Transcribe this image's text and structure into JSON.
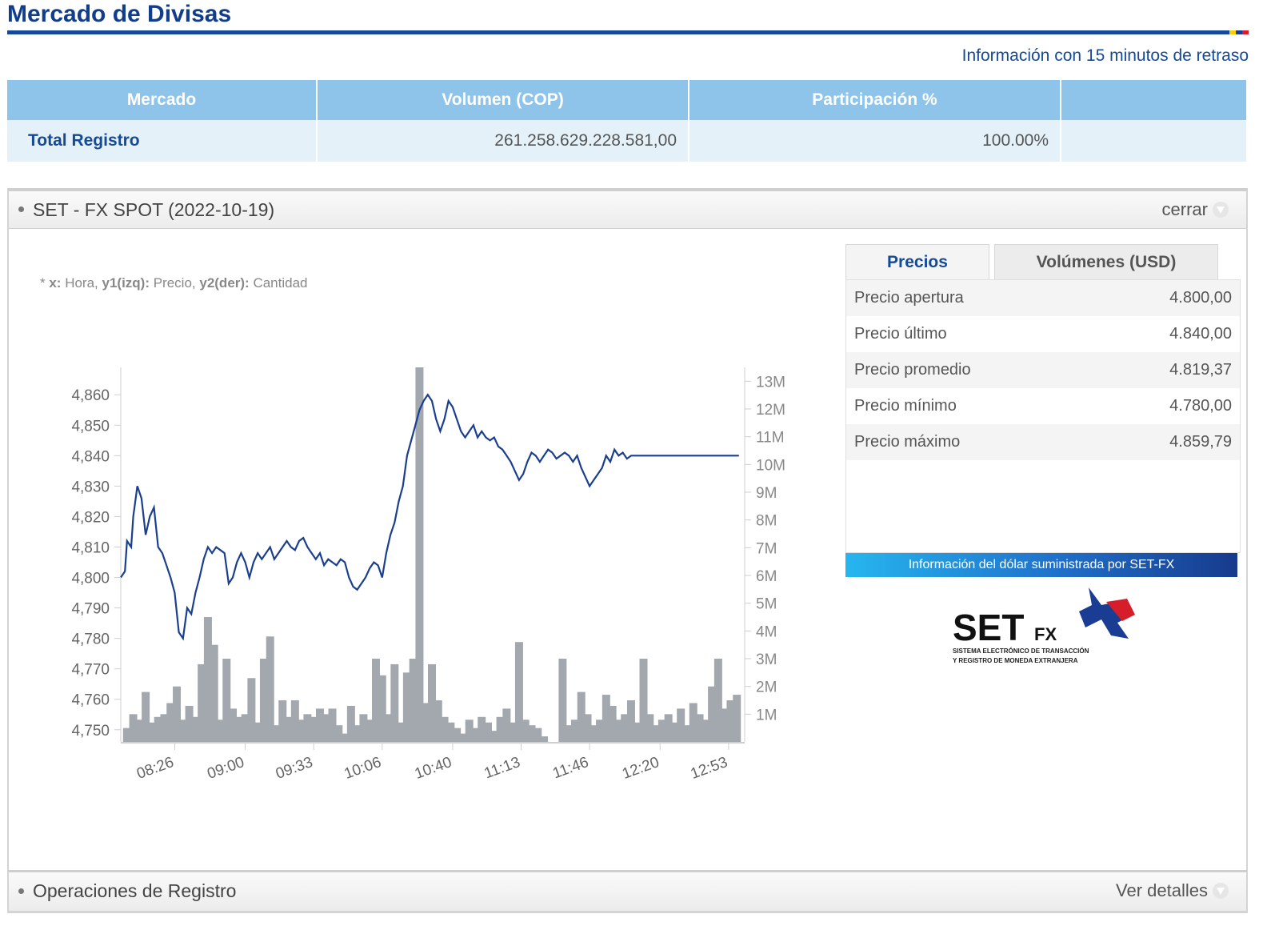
{
  "header": {
    "title": "Mercado de Divisas",
    "delay_note": "Información con 15 minutos de retraso"
  },
  "market_table": {
    "headers": [
      "Mercado",
      "Volumen (COP)",
      "Participación %",
      ""
    ],
    "row": {
      "mercado": "Total Registro",
      "volumen": "261.258.629.228.581,00",
      "participacion": "100.00%"
    }
  },
  "panel": {
    "title": "SET - FX SPOT (2022-10-19)",
    "close_label": "cerrar",
    "legend": {
      "x_key": "x:",
      "x_val": " Hora, ",
      "y1_key": "y1(izq):",
      "y1_val": " Precio, ",
      "y2_key": "y2(der):",
      "y2_val": " Cantidad"
    },
    "tabs": {
      "prices": "Precios",
      "volumes": "Volúmenes (USD)"
    },
    "prices": [
      {
        "label": "Precio apertura",
        "value": "4.800,00"
      },
      {
        "label": "Precio último",
        "value": "4.840,00"
      },
      {
        "label": "Precio promedio",
        "value": "4.819,37"
      },
      {
        "label": "Precio mínimo",
        "value": "4.780,00"
      },
      {
        "label": "Precio máximo",
        "value": "4.859,79"
      }
    ],
    "banner": "Información del dólar suministrada por SET-FX",
    "logo": {
      "main": "SET",
      "sub": "FX",
      "tag1": "SISTEMA ELECTRÓNICO DE TRANSACCIÓN",
      "tag2": "Y REGISTRO DE MONEDA EXTRANJERA"
    }
  },
  "panel2": {
    "title": "Operaciones de Registro",
    "details_label": "Ver detalles"
  },
  "colors": {
    "brand": "#103d8c",
    "price_line": "#1a3f8f",
    "volume_bar": "#a2a8ad",
    "table_header": "#8fc4ea"
  },
  "chart_data": {
    "type": "line+bar",
    "x_tick_labels": [
      "08:26",
      "09:00",
      "09:33",
      "10:06",
      "10:40",
      "11:13",
      "11:46",
      "12:20",
      "12:53"
    ],
    "y1_tick_labels": [
      "4,750",
      "4,760",
      "4,770",
      "4,780",
      "4,790",
      "4,800",
      "4,810",
      "4,820",
      "4,830",
      "4,840",
      "4,850",
      "4,860"
    ],
    "y2_tick_labels": [
      "1M",
      "2M",
      "3M",
      "4M",
      "5M",
      "6M",
      "7M",
      "8M",
      "9M",
      "10M",
      "11M",
      "12M",
      "13M"
    ],
    "y1_range": [
      4746,
      4869
    ],
    "y2_range": [
      0,
      13500000
    ],
    "x_range_minutes": [
      480,
      780
    ],
    "price_series": {
      "x_minutes": [
        480,
        482,
        483,
        485,
        486,
        488,
        490,
        492,
        494,
        496,
        498,
        500,
        502,
        504,
        506,
        508,
        510,
        512,
        514,
        516,
        518,
        520,
        522,
        524,
        526,
        528,
        530,
        532,
        534,
        536,
        538,
        540,
        542,
        544,
        546,
        548,
        550,
        552,
        554,
        556,
        558,
        560,
        562,
        564,
        566,
        568,
        570,
        572,
        574,
        576,
        578,
        580,
        582,
        584,
        586,
        588,
        590,
        592,
        594,
        596,
        598,
        600,
        602,
        604,
        606,
        608,
        610,
        612,
        614,
        616,
        618,
        620,
        622,
        624,
        626,
        628,
        630,
        632,
        634,
        636,
        638,
        640,
        642,
        644,
        646,
        648,
        650,
        652,
        654,
        656,
        658,
        660,
        662,
        664,
        666,
        668,
        670,
        672,
        674,
        676,
        678,
        680,
        682,
        684,
        686,
        688,
        690,
        692,
        694,
        696,
        698,
        700,
        702,
        704,
        706,
        708,
        710,
        712,
        714,
        716,
        718,
        720,
        722,
        724,
        726,
        728,
        730,
        732,
        734,
        736,
        738,
        740,
        742,
        744,
        746,
        748,
        750,
        752,
        754,
        756,
        758,
        760,
        762,
        764,
        766,
        768,
        770,
        772,
        774,
        776,
        778
      ],
      "values": [
        4800,
        4802,
        4812,
        4810,
        4820,
        4830,
        4826,
        4814,
        4820,
        4823,
        4810,
        4808,
        4804,
        4800,
        4795,
        4782,
        4780,
        4790,
        4788,
        4795,
        4800,
        4806,
        4810,
        4808,
        4810,
        4809,
        4808,
        4798,
        4800,
        4805,
        4808,
        4805,
        4800,
        4805,
        4808,
        4806,
        4808,
        4810,
        4806,
        4808,
        4810,
        4812,
        4810,
        4809,
        4812,
        4813,
        4810,
        4808,
        4806,
        4808,
        4804,
        4806,
        4805,
        4804,
        4806,
        4805,
        4800,
        4797,
        4796,
        4798,
        4800,
        4803,
        4805,
        4804,
        4800,
        4808,
        4814,
        4818,
        4825,
        4830,
        4840,
        4845,
        4850,
        4855,
        4858,
        4860,
        4858,
        4852,
        4848,
        4852,
        4858,
        4856,
        4852,
        4848,
        4846,
        4848,
        4850,
        4846,
        4848,
        4846,
        4845,
        4846,
        4843,
        4842,
        4840,
        4838,
        4835,
        4832,
        4834,
        4838,
        4841,
        4840,
        4838,
        4840,
        4842,
        4841,
        4839,
        4840,
        4841,
        4840,
        4838,
        4840,
        4836,
        4833,
        4830,
        4832,
        4834,
        4836,
        4840,
        4838,
        4842,
        4840,
        4841,
        4839,
        4840,
        4840,
        4840,
        4840,
        4840,
        4840,
        4840,
        4840,
        4840,
        4840,
        4840,
        4840,
        4840,
        4840,
        4840,
        4840,
        4840,
        4840,
        4840,
        4840,
        4840,
        4840,
        4840,
        4840,
        4840,
        4840,
        4840
      ]
    },
    "volume_series": {
      "x_minutes": [
        483,
        486,
        489,
        492,
        495,
        498,
        501,
        504,
        507,
        510,
        513,
        516,
        519,
        522,
        525,
        528,
        531,
        534,
        537,
        540,
        543,
        546,
        549,
        552,
        555,
        558,
        561,
        564,
        567,
        570,
        573,
        576,
        579,
        582,
        585,
        588,
        591,
        594,
        597,
        600,
        603,
        606,
        609,
        612,
        615,
        618,
        621,
        624,
        627,
        630,
        633,
        636,
        639,
        642,
        645,
        648,
        651,
        654,
        657,
        660,
        663,
        666,
        669,
        672,
        675,
        678,
        681,
        684,
        687,
        690,
        693,
        696,
        699,
        702,
        705,
        708,
        711,
        714,
        717,
        720,
        723,
        726,
        729,
        732,
        735,
        738,
        741,
        744,
        747,
        750,
        753,
        756,
        759,
        762,
        765,
        768,
        771,
        774,
        777
      ],
      "values": [
        500000,
        1000000,
        800000,
        1800000,
        700000,
        900000,
        1000000,
        1400000,
        2000000,
        800000,
        1300000,
        900000,
        2800000,
        4500000,
        3500000,
        800000,
        3000000,
        1200000,
        900000,
        1000000,
        2300000,
        700000,
        3000000,
        3800000,
        600000,
        1500000,
        900000,
        1500000,
        800000,
        1000000,
        900000,
        1200000,
        1000000,
        1200000,
        600000,
        300000,
        1300000,
        600000,
        1000000,
        800000,
        3000000,
        2400000,
        1000000,
        2800000,
        700000,
        2500000,
        3000000,
        13500000,
        1400000,
        2800000,
        1500000,
        900000,
        700000,
        500000,
        300000,
        800000,
        500000,
        900000,
        700000,
        400000,
        900000,
        1200000,
        700000,
        3600000,
        800000,
        600000,
        500000,
        200000,
        0,
        0,
        3000000,
        600000,
        800000,
        1800000,
        1000000,
        600000,
        800000,
        1700000,
        1300000,
        800000,
        1000000,
        1500000,
        700000,
        3000000,
        1000000,
        600000,
        800000,
        1000000,
        700000,
        1200000,
        600000,
        1400000,
        1000000,
        800000,
        2000000,
        3000000,
        1200000,
        1500000,
        1700000
      ]
    }
  }
}
